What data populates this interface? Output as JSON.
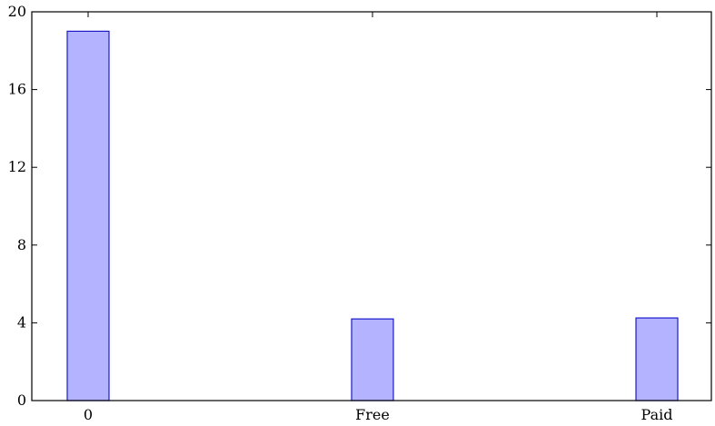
{
  "chart_data": {
    "type": "bar",
    "categories": [
      "0",
      "Free",
      "Paid"
    ],
    "values": [
      19,
      4.2,
      4.25
    ],
    "title": "",
    "xlabel": "",
    "ylabel": "",
    "ylim": [
      0,
      20
    ],
    "yticks": [
      0,
      4,
      8,
      12,
      16,
      20
    ],
    "grid": false,
    "legend": "none",
    "colors": {
      "bar_fill": "#b3b3ff",
      "bar_stroke": "#1a1acc",
      "axis": "#000000"
    }
  }
}
